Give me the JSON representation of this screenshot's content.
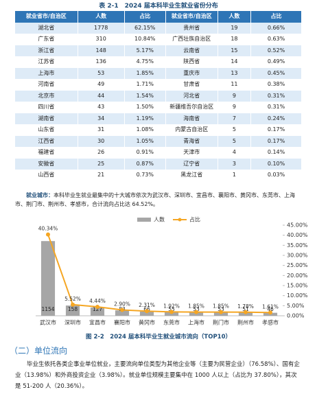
{
  "table": {
    "title": "表 2-1　2024 届本科毕业生就业省份分布",
    "header": [
      "就业省市/自治区",
      "人数",
      "占比",
      "就业省市/自治区",
      "人数",
      "占比"
    ],
    "rows": [
      [
        "湖北省",
        1778,
        "62.15%",
        "贵州省",
        19,
        "0.66%"
      ],
      [
        "广东省",
        310,
        "10.84%",
        "广西壮族自治区",
        18,
        "0.63%"
      ],
      [
        "浙江省",
        148,
        "5.17%",
        "云南省",
        15,
        "0.52%"
      ],
      [
        "江苏省",
        136,
        "4.75%",
        "陕西省",
        14,
        "0.49%"
      ],
      [
        "上海市",
        53,
        "1.85%",
        "重庆市",
        13,
        "0.45%"
      ],
      [
        "河南省",
        49,
        "1.71%",
        "甘肃省",
        11,
        "0.38%"
      ],
      [
        "北京市",
        44,
        "1.54%",
        "河北省",
        9,
        "0.31%"
      ],
      [
        "四川省",
        43,
        "1.50%",
        "新疆维吾尔自治区",
        9,
        "0.31%"
      ],
      [
        "湖南省",
        34,
        "1.19%",
        "海南省",
        7,
        "0.24%"
      ],
      [
        "山东省",
        31,
        "1.08%",
        "内蒙古自治区",
        5,
        "0.17%"
      ],
      [
        "江西省",
        30,
        "1.05%",
        "青海省",
        5,
        "0.17%"
      ],
      [
        "福建省",
        26,
        "0.91%",
        "天津市",
        4,
        "0.14%"
      ],
      [
        "安徽省",
        25,
        "0.87%",
        "辽宁省",
        3,
        "0.10%"
      ],
      [
        "山西省",
        21,
        "0.73%",
        "黑龙江省",
        1,
        "0.03%"
      ]
    ]
  },
  "note": {
    "label": "就业城市：",
    "text": "本科毕业生就业最集中的十大城市依次为武汉市、深圳市、宜昌市、襄阳市、黄冈市、东莞市、上海市、荆门市、荆州市、孝感市，合计流向占比达 64.52%。"
  },
  "chart_data": {
    "type": "bar-line",
    "categories": [
      "武汉市",
      "深圳市",
      "宜昌市",
      "襄阳市",
      "黄冈市",
      "东莞市",
      "上海市",
      "荆门市",
      "荆州市",
      "孝感市"
    ],
    "series": [
      {
        "name": "人数",
        "color": "#a6a6a6",
        "values": [
          1154,
          158,
          127,
          83,
          66,
          55,
          53,
          53,
          51,
          46
        ]
      },
      {
        "name": "占比",
        "color": "#f5a623",
        "axis": "y2",
        "values": [
          40.34,
          5.52,
          4.44,
          2.9,
          2.31,
          1.92,
          1.85,
          1.85,
          1.78,
          1.61
        ],
        "value_labels": [
          "40.34%",
          "5.52%",
          "4.44%",
          "2.90%",
          "2.31%",
          "1.92%",
          "1.85%",
          "1.85%",
          "1.78%",
          "1.61%"
        ]
      }
    ],
    "ylim": [
      0,
      1400
    ],
    "y2lim": [
      0,
      45
    ],
    "y2ticks": [
      {
        "value": 0,
        "label": "0.00%"
      },
      {
        "value": 5,
        "label": "5.00%"
      },
      {
        "value": 10,
        "label": "10.00%"
      },
      {
        "value": 15,
        "label": "15.00%"
      },
      {
        "value": 20,
        "label": "20.00%"
      },
      {
        "value": 25,
        "label": "25.00%"
      },
      {
        "value": 30,
        "label": "30.00%"
      },
      {
        "value": 35,
        "label": "35.00%"
      },
      {
        "value": 40,
        "label": "40.00%"
      },
      {
        "value": 45,
        "label": "45.00%"
      }
    ],
    "legend": "top"
  },
  "caption": "图 2-2　2024 届本科毕业生就业城市流向（TOP10）",
  "section_heading": "（二）单位流向",
  "paragraph": "毕业生依托各类企事业单位就业，主要流向单位类型为其他企业等（主要为民营企业）（76.58%）、国有企业（13.98%）和外商投资企业（3.98%）。就业单位规模主要集中在 1000 人以上（占比为 37.80%），其次是 51-200 人（20.36%）。"
}
